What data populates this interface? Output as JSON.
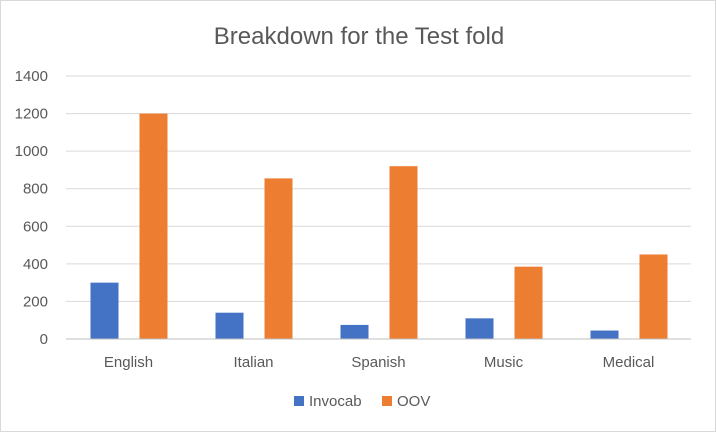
{
  "chart_data": {
    "type": "bar",
    "title": "Breakdown for the Test fold",
    "xlabel": "",
    "ylabel": "",
    "categories": [
      "English",
      "Italian",
      "Spanish",
      "Music",
      "Medical"
    ],
    "series": [
      {
        "name": "Invocab",
        "values": [
          300,
          140,
          75,
          110,
          45
        ],
        "color": "#4472c4"
      },
      {
        "name": "OOV",
        "values": [
          1200,
          855,
          920,
          385,
          450
        ],
        "color": "#ed7d31"
      }
    ],
    "ylim": [
      0,
      1400
    ],
    "yticks": [
      "0",
      "200",
      "400",
      "600",
      "800",
      "1000",
      "1200",
      "1400"
    ],
    "grid": true,
    "legend_position": "bottom",
    "gridline_color": "#d9d9d9",
    "axis_line_color": "#bfbfbf"
  }
}
